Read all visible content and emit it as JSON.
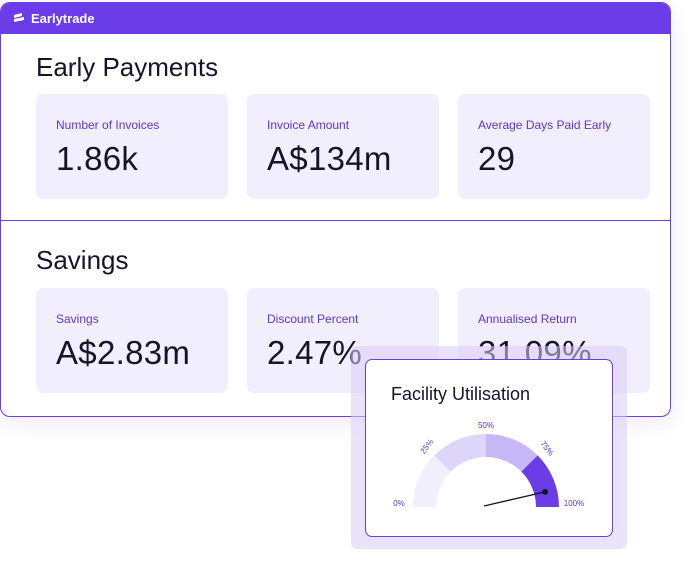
{
  "app": {
    "brand": "Earlytrade"
  },
  "early_payments": {
    "title": "Early Payments",
    "cards": [
      {
        "label": "Number of Invoices",
        "value": "1.86k"
      },
      {
        "label": "Invoice Amount",
        "value": "A$134m"
      },
      {
        "label": "Average Days Paid Early",
        "value": "29"
      }
    ]
  },
  "savings": {
    "title": "Savings",
    "cards": [
      {
        "label": "Savings",
        "value": "A$2.83m"
      },
      {
        "label": "Discount Percent",
        "value": "2.47%"
      },
      {
        "label": "Annualised Return",
        "value": "31.09%"
      }
    ]
  },
  "facility": {
    "title": "Facility Utilisation",
    "ticks": [
      "0%",
      "25%",
      "50%",
      "75%",
      "100%"
    ],
    "needle_fraction": 0.92,
    "colors": {
      "segment_1": "#f1eefd",
      "segment_2": "#ddd5fa",
      "segment_3": "#c6b8f6",
      "segment_4": "#6a3de8",
      "needle": "#16132b"
    }
  },
  "colors": {
    "accent": "#6a3de8",
    "card_bg": "#f1eefd"
  }
}
